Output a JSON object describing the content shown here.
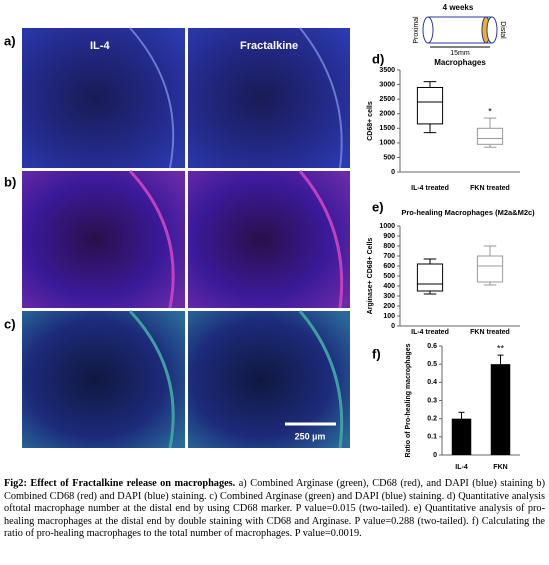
{
  "figure": {
    "panel_labels": [
      "a)",
      "b)",
      "c)",
      "d)",
      "e)",
      "f)"
    ],
    "image_labels": [
      "IL-4",
      "Fractalkine"
    ],
    "scale_bar": "250 µm",
    "diagram": {
      "time": "4 weeks",
      "proximal": "Proximal",
      "distal": "Distal",
      "length": "15mm",
      "subject": "Macrophages"
    }
  },
  "chart_data": [
    {
      "type": "box",
      "ylabel": "CD68+ cells",
      "categories": [
        "IL-4 treated",
        "FKN treated"
      ],
      "min": [
        1350,
        850
      ],
      "q1": [
        1650,
        950
      ],
      "median": [
        2400,
        1150
      ],
      "q3": [
        2900,
        1500
      ],
      "max": [
        3100,
        1850
      ],
      "colors": [
        "#000000",
        "#999999"
      ],
      "ylim": [
        0,
        3500
      ],
      "yticks": [
        0,
        500,
        1000,
        1500,
        2000,
        2500,
        3000,
        3500
      ],
      "annotations": [
        {
          "text": "*",
          "category": "FKN treated"
        }
      ]
    },
    {
      "type": "box",
      "title": "Pro-healing Macrophages (M2a&M2c)",
      "ylabel": "Arginase+ CD68+ Cells",
      "categories": [
        "IL-4 treated",
        "FKN treated"
      ],
      "min": [
        320,
        410
      ],
      "q1": [
        350,
        440
      ],
      "median": [
        420,
        600
      ],
      "q3": [
        620,
        700
      ],
      "max": [
        670,
        800
      ],
      "colors": [
        "#000000",
        "#999999"
      ],
      "ylim": [
        0,
        1000
      ],
      "yticks": [
        0,
        100,
        200,
        300,
        400,
        500,
        600,
        700,
        800,
        900,
        1000
      ]
    },
    {
      "type": "bar",
      "ylabel": "Ratio of Pro-healing macrophages",
      "categories": [
        "IL-4",
        "FKN"
      ],
      "values": [
        0.2,
        0.5
      ],
      "errors": [
        0.035,
        0.05
      ],
      "color": "#000000",
      "ylim": [
        0,
        0.6
      ],
      "yticks": [
        0,
        0.1,
        0.2,
        0.3,
        0.4,
        0.5,
        0.6
      ],
      "annotations": [
        {
          "text": "**",
          "category": "FKN"
        }
      ]
    }
  ],
  "caption": {
    "lead": "Fig2: Effect of Fractalkine release on macrophages.",
    "body": "a) Combined Arginase (green), CD68 (red), and DAPI (blue) staining b) Combined CD68 (red) and DAPI (blue) staining. c) Combined Arginase (green) and DAPI (blue) staining. d) Quantitative analysis oftotal macrophage number at the distal end by using CD68 marker. P value=0.015 (two-tailed). e) Quantitative analysis of pro-healing macrophages at the distal end by double staining with CD68 and Arginase. P value=0.288 (two-tailed). f) Calculating the ratio of pro-healing macrophages to the total number of macrophages. P value=0.0019."
  }
}
